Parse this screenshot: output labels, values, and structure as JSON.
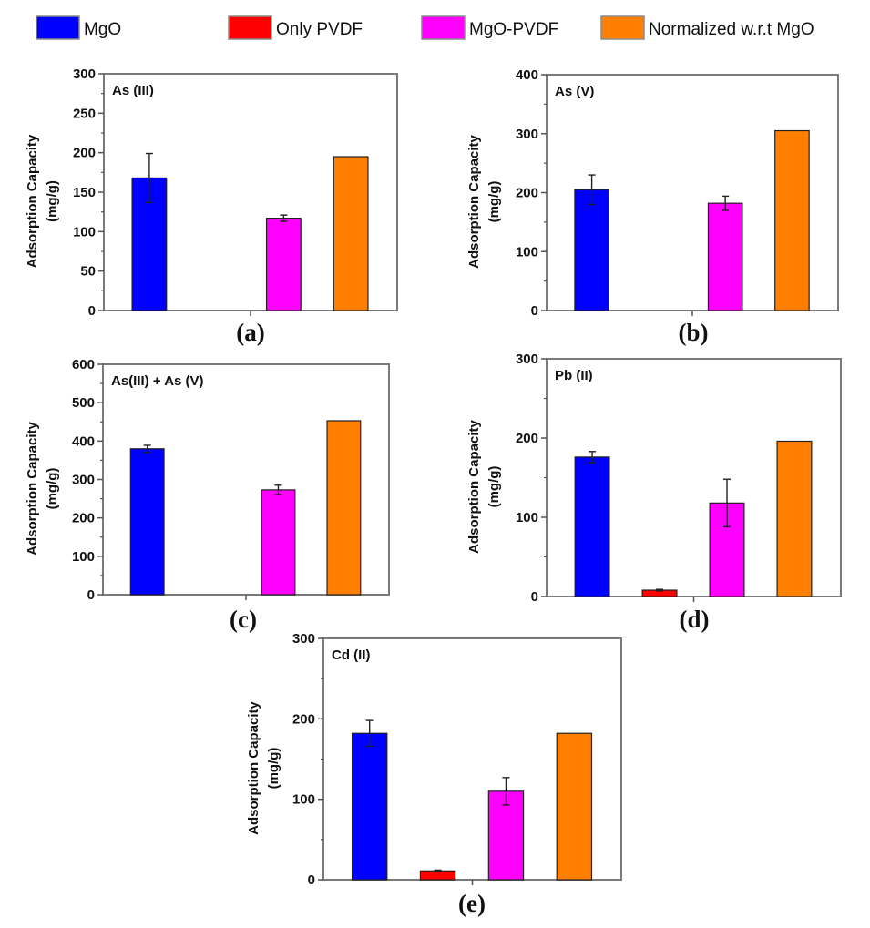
{
  "legend": [
    {
      "name": "MgO",
      "color": "#0000ff"
    },
    {
      "name": "Only PVDF",
      "color": "#ff0000"
    },
    {
      "name": "MgO-PVDF",
      "color": "#ff00ff"
    },
    {
      "name": "Normalized w.r.t MgO",
      "color": "#ff8000"
    }
  ],
  "chart_data": [
    {
      "type": "bar",
      "panel": "(a)",
      "title": "As (III)",
      "ylabel": "Adsorption Capacity",
      "ylabel_units": "(mg/g)",
      "ylim": [
        0,
        300
      ],
      "yticks": [
        0,
        50,
        100,
        150,
        200,
        250,
        300
      ],
      "categories": [
        "MgO",
        "Only PVDF",
        "MgO-PVDF",
        "Normalized w.r.t MgO"
      ],
      "values": [
        168,
        null,
        117,
        195
      ],
      "errors": [
        31,
        null,
        4,
        null
      ]
    },
    {
      "type": "bar",
      "panel": "(b)",
      "title": "As (V)",
      "ylabel": "Adsorption Capacity",
      "ylabel_units": "(mg/g)",
      "ylim": [
        0,
        400
      ],
      "yticks": [
        0,
        100,
        200,
        300,
        400
      ],
      "categories": [
        "MgO",
        "Only PVDF",
        "MgO-PVDF",
        "Normalized w.r.t MgO"
      ],
      "values": [
        205,
        null,
        182,
        305
      ],
      "errors": [
        25,
        null,
        12,
        null
      ]
    },
    {
      "type": "bar",
      "panel": "(c)",
      "title": "As(III) + As (V)",
      "ylabel": "Adsorption Capacity",
      "ylabel_units": "(mg/g)",
      "ylim": [
        0,
        600
      ],
      "yticks": [
        0,
        100,
        200,
        300,
        400,
        500,
        600
      ],
      "categories": [
        "MgO",
        "Only PVDF",
        "MgO-PVDF",
        "Normalized w.r.t MgO"
      ],
      "values": [
        380,
        null,
        273,
        453
      ],
      "errors": [
        9,
        null,
        12,
        null
      ]
    },
    {
      "type": "bar",
      "panel": "(d)",
      "title": "Pb (II)",
      "ylabel": "Adsorption Capacity",
      "ylabel_units": "(mg/g)",
      "ylim": [
        0,
        300
      ],
      "yticks": [
        0,
        100,
        200,
        300
      ],
      "categories": [
        "MgO",
        "Only PVDF",
        "MgO-PVDF",
        "Normalized w.r.t MgO"
      ],
      "values": [
        176,
        8,
        118,
        196
      ],
      "errors": [
        7,
        1,
        30,
        null
      ]
    },
    {
      "type": "bar",
      "panel": "(e)",
      "title": "Cd (II)",
      "ylabel": "Adsorption Capacity",
      "ylabel_units": "(mg/g)",
      "ylim": [
        0,
        300
      ],
      "yticks": [
        0,
        100,
        200,
        300
      ],
      "categories": [
        "MgO",
        "Only PVDF",
        "MgO-PVDF",
        "Normalized w.r.t MgO"
      ],
      "values": [
        182,
        11,
        110,
        182
      ],
      "errors": [
        16,
        1,
        17,
        null
      ]
    }
  ]
}
